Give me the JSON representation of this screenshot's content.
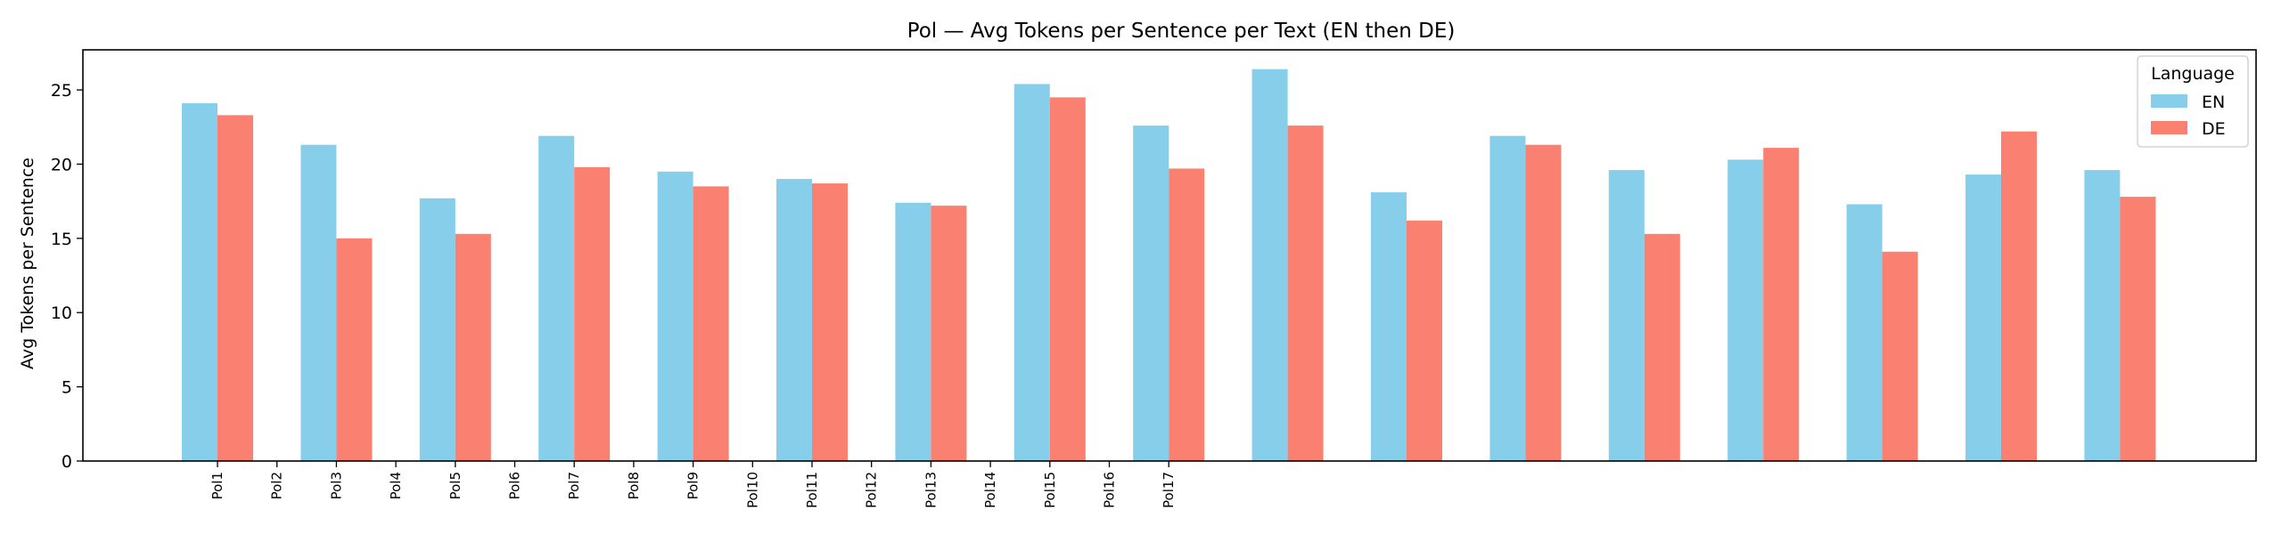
{
  "chart_data": {
    "type": "bar",
    "title": "Pol — Avg Tokens per Sentence per Text (EN then DE)",
    "xlabel": "",
    "ylabel": "Avg Tokens per Sentence",
    "ylim": [
      0,
      27.7
    ],
    "yticks": [
      "0",
      "5",
      "10",
      "15",
      "20",
      "25"
    ],
    "ytick_values": [
      0,
      5,
      10,
      15,
      20,
      25
    ],
    "grid": false,
    "tick_labels": [
      "Pol1",
      "Pol2",
      "Pol3",
      "Pol4",
      "Pol5",
      "Pol6",
      "Pol7",
      "Pol8",
      "Pol9",
      "Pol10",
      "Pol11",
      "Pol12",
      "Pol13",
      "Pol14",
      "Pol15",
      "Pol16",
      "Pol17"
    ],
    "legend": {
      "title": "Language",
      "placement": "top-right"
    },
    "series": [
      {
        "name": "EN",
        "color": "#87ceeb",
        "values": [
          24.1,
          21.3,
          17.7,
          21.9,
          19.5,
          19.0,
          17.4,
          25.4,
          22.6,
          26.4,
          18.1,
          21.9,
          19.6,
          20.3,
          17.3,
          19.3,
          19.6
        ]
      },
      {
        "name": "DE",
        "color": "#fa8072",
        "values": [
          23.3,
          15.0,
          15.3,
          19.8,
          18.5,
          18.7,
          17.2,
          24.5,
          19.7,
          22.6,
          16.2,
          21.3,
          15.3,
          21.1,
          14.1,
          22.2,
          17.8
        ]
      }
    ]
  }
}
